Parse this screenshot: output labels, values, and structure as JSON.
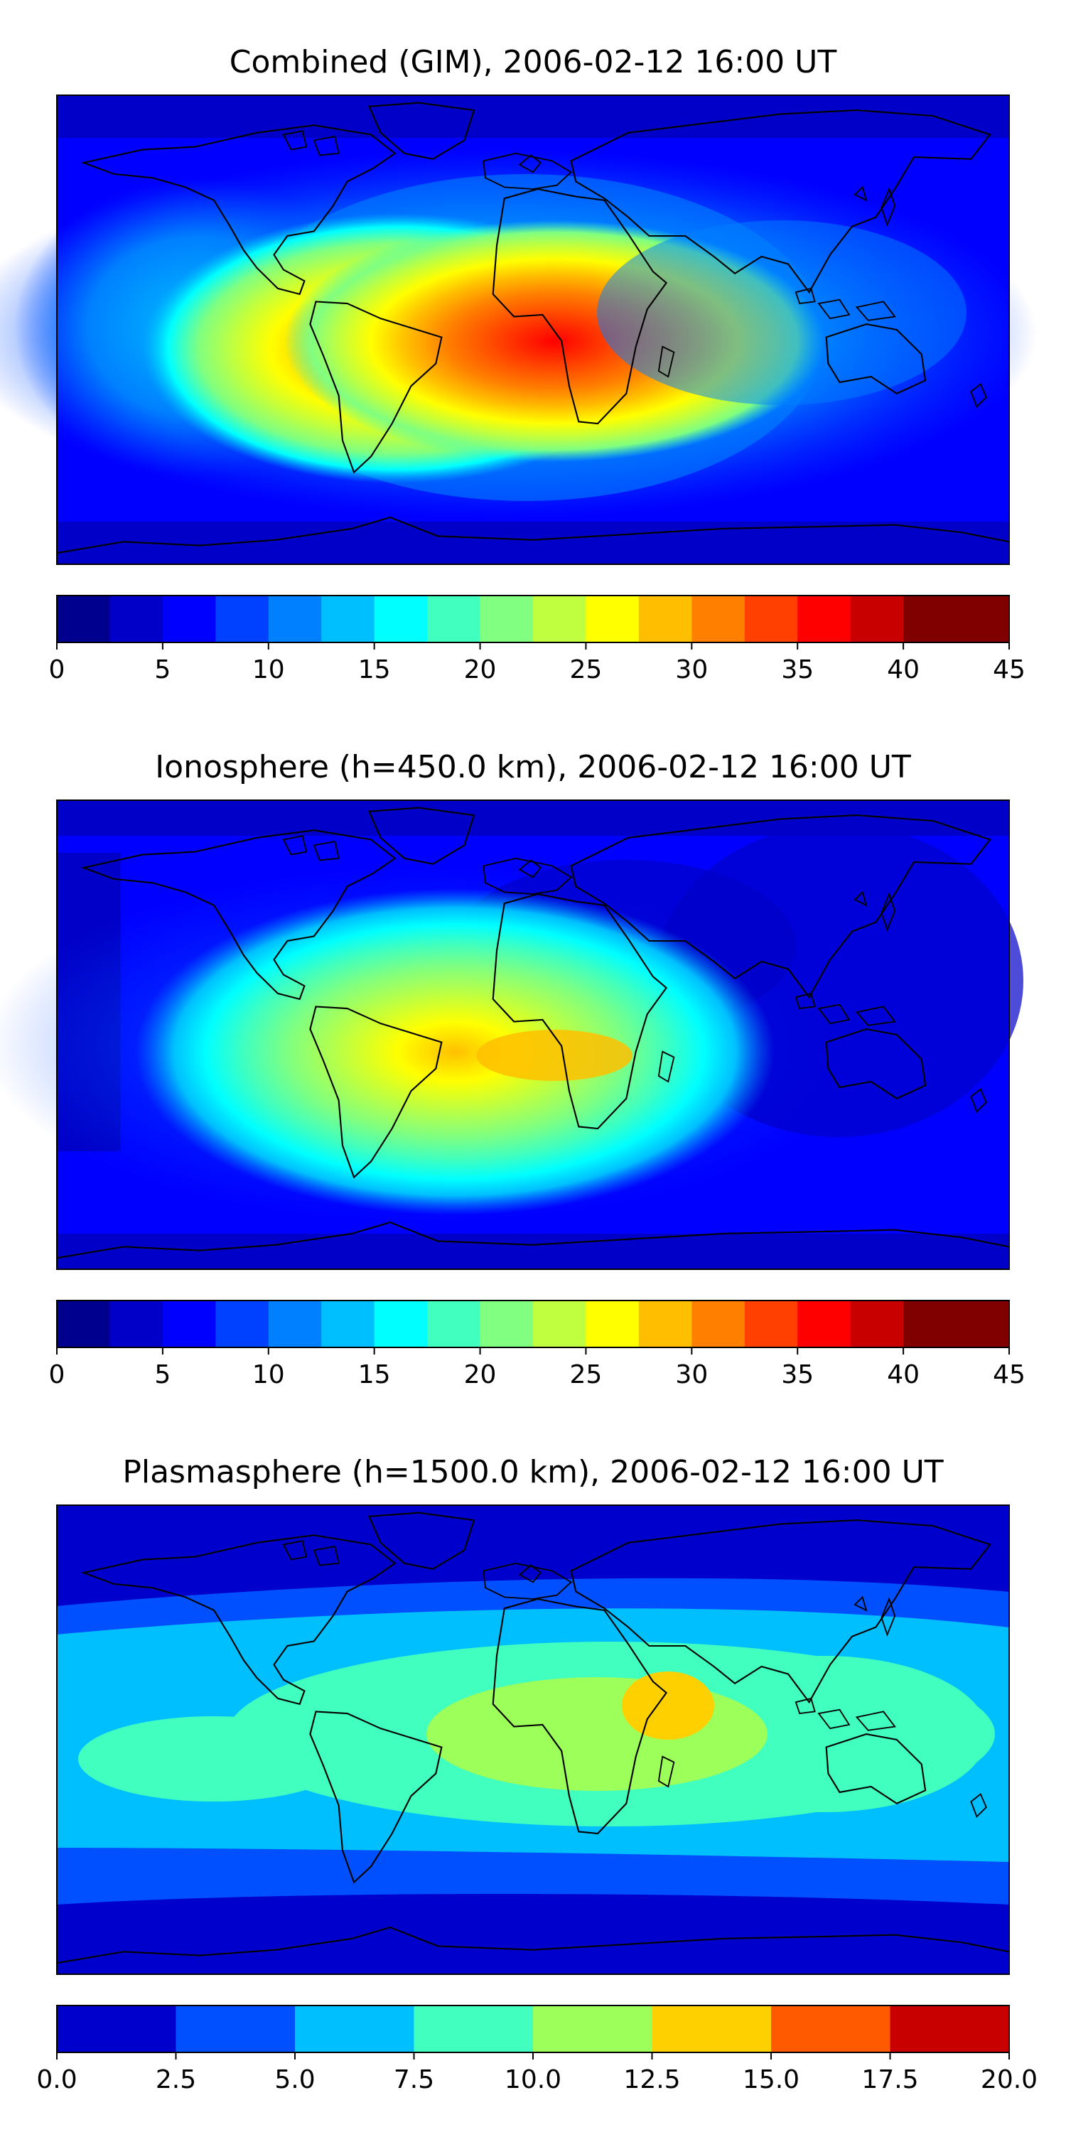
{
  "panels": [
    {
      "title": "Combined (GIM), 2006-02-12 16:00 UT",
      "colorbar": {
        "levels": [
          0,
          2.5,
          5,
          7.5,
          10,
          12.5,
          15,
          17.5,
          20,
          22.5,
          25,
          27.5,
          30,
          32.5,
          35,
          37.5,
          40,
          42.5,
          45
        ],
        "colors": [
          "#00008f",
          "#0000c8",
          "#0000ff",
          "#0040ff",
          "#0080ff",
          "#00bfff",
          "#00ffff",
          "#40ffbf",
          "#80ff80",
          "#bfff40",
          "#ffff00",
          "#ffbf00",
          "#ff8000",
          "#ff4000",
          "#ff0000",
          "#c80000",
          "#800000",
          "#800000"
        ],
        "tick_labels": [
          "0",
          "5",
          "10",
          "15",
          "20",
          "25",
          "30",
          "35",
          "40",
          "45"
        ]
      }
    },
    {
      "title": "Ionosphere  (h=450.0 km), 2006-02-12 16:00 UT",
      "colorbar": {
        "levels": [
          0,
          2.5,
          5,
          7.5,
          10,
          12.5,
          15,
          17.5,
          20,
          22.5,
          25,
          27.5,
          30,
          32.5,
          35,
          37.5,
          40,
          42.5,
          45
        ],
        "colors": [
          "#00008f",
          "#0000c8",
          "#0000ff",
          "#0040ff",
          "#0080ff",
          "#00bfff",
          "#00ffff",
          "#40ffbf",
          "#80ff80",
          "#bfff40",
          "#ffff00",
          "#ffbf00",
          "#ff8000",
          "#ff4000",
          "#ff0000",
          "#c80000",
          "#800000",
          "#800000"
        ],
        "tick_labels": [
          "0",
          "5",
          "10",
          "15",
          "20",
          "25",
          "30",
          "35",
          "40",
          "45"
        ]
      }
    },
    {
      "title": "Plasmasphere (h=1500.0 km), 2006-02-12 16:00 UT",
      "colorbar": {
        "levels": [
          0,
          2.5,
          5,
          7.5,
          10,
          12.5,
          15,
          17.5,
          20
        ],
        "colors": [
          "#0000cd",
          "#0050ff",
          "#00bfff",
          "#40ffbf",
          "#9cff5a",
          "#ffd000",
          "#ff5a00",
          "#c80000"
        ],
        "tick_labels": [
          "0.0",
          "2.5",
          "5.0",
          "7.5",
          "10.0",
          "12.5",
          "15.0",
          "17.5",
          "20.0"
        ]
      }
    }
  ]
}
